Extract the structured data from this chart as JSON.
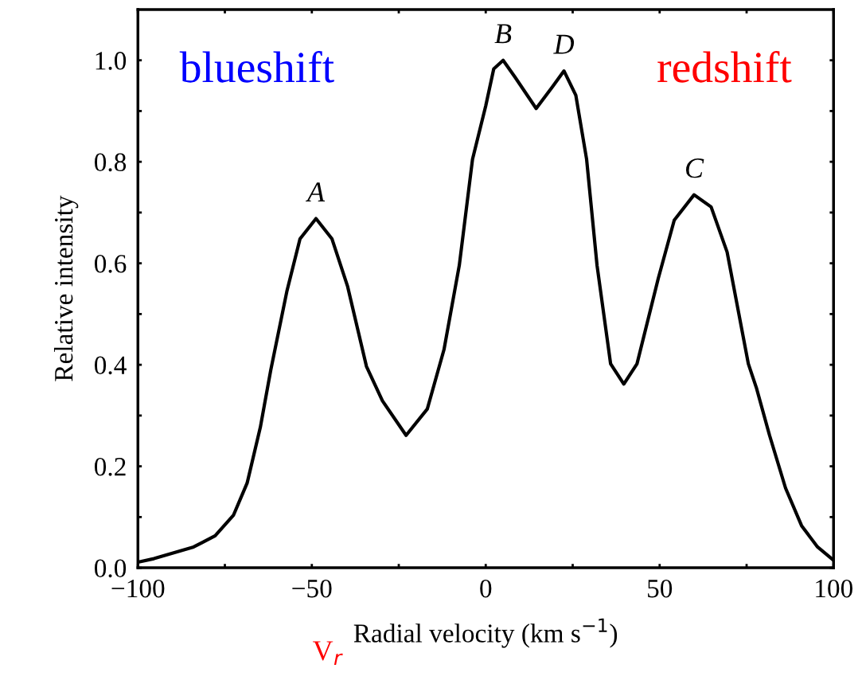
{
  "chart_data": {
    "type": "line",
    "xlabel": "Radial velocity (km s$^{−1}$)",
    "ylabel": "Relative intensity",
    "series": [
      {
        "color": "#000000",
        "x": [
          -100,
          -95.4,
          -84,
          -77.8,
          -72.5,
          -68.6,
          -64.8,
          -61.8,
          -57.2,
          -53.4,
          -48.8,
          -44.2,
          -39.7,
          -34.3,
          -29.7,
          -22.9,
          -16.8,
          -12,
          -7.6,
          -3.8,
          0,
          2.3,
          5.0,
          8.4,
          14.5,
          19.1,
          22.5,
          25.9,
          29.0,
          32.0,
          35.9,
          39.7,
          43.5,
          49.6,
          54.2,
          59.9,
          64.8,
          69.4,
          75.5,
          77.8,
          81.6,
          86.2,
          90.8,
          95.4,
          100
        ],
        "values": [
          0.011,
          0.018,
          0.041,
          0.063,
          0.104,
          0.167,
          0.277,
          0.39,
          0.544,
          0.648,
          0.688,
          0.648,
          0.554,
          0.397,
          0.329,
          0.261,
          0.313,
          0.43,
          0.596,
          0.805,
          0.91,
          0.983,
          1.0,
          0.967,
          0.905,
          0.947,
          0.979,
          0.931,
          0.805,
          0.596,
          0.402,
          0.362,
          0.402,
          0.57,
          0.685,
          0.735,
          0.711,
          0.622,
          0.402,
          0.355,
          0.261,
          0.157,
          0.083,
          0.041,
          0.015
        ]
      }
    ],
    "xlim": [
      -100,
      100
    ],
    "ylim": [
      0,
      1.1
    ],
    "xticks": [
      -100,
      {
        "value": -75,
        "label": null
      },
      -50,
      {
        "value": -25,
        "label": null
      },
      0,
      {
        "value": 25,
        "label": null
      },
      50,
      {
        "value": 75,
        "label": null
      },
      100
    ],
    "yticks": [
      {
        "value": 0,
        "label": "0.0"
      },
      {
        "value": 0.1,
        "label": null
      },
      0.2,
      {
        "value": 0.3,
        "label": null
      },
      0.4,
      {
        "value": 0.5,
        "label": null
      },
      0.6,
      {
        "value": 0.7,
        "label": null
      },
      0.8,
      {
        "value": 0.9,
        "label": null
      },
      {
        "value": 1.0,
        "label": "1.0"
      }
    ],
    "line_style": "solid",
    "marker": "none",
    "grid": false,
    "legend": false,
    "annotations": [
      {
        "text": "A",
        "x": -48.8,
        "y": 0.688
      },
      {
        "text": "B",
        "x": 5.0,
        "y": 1.0
      },
      {
        "text": "D",
        "x": 22.5,
        "y": 0.979
      },
      {
        "text": "C",
        "x": 59.9,
        "y": 0.735
      },
      "blueshift",
      "redshift",
      "V$_{r}$"
    ]
  }
}
